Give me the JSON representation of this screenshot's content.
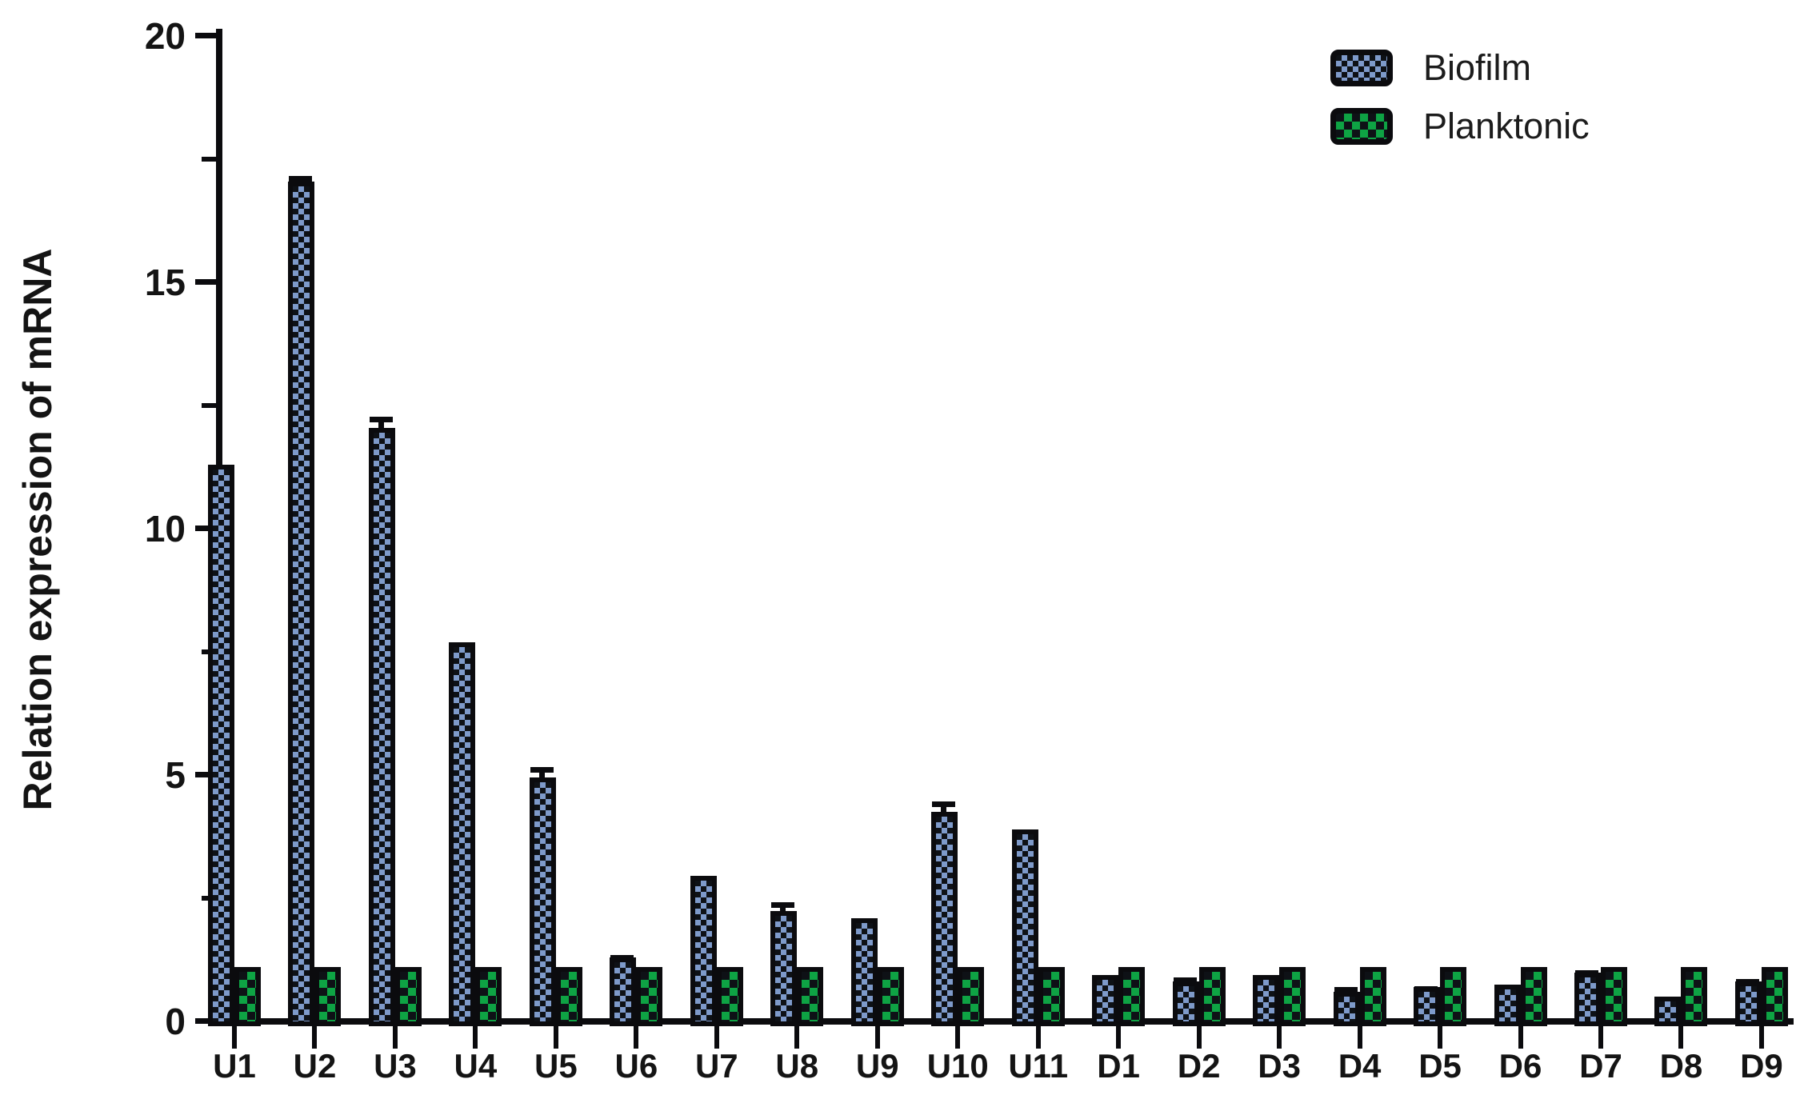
{
  "figure": {
    "background": "#ffffff",
    "axis_color": "#0b0b0e",
    "text_color": "#141414"
  },
  "chart_data": {
    "type": "bar",
    "title": "",
    "xlabel": "",
    "ylabel": "Relation expression of mRNA",
    "ylim": [
      0,
      20
    ],
    "y_ticks": {
      "values": [
        0,
        5,
        10,
        15,
        20
      ],
      "labels": [
        "0",
        "5",
        "10",
        "15",
        "20"
      ],
      "minor": [
        2.5,
        7.5,
        12.5,
        17.5
      ]
    },
    "grid": false,
    "legend_position": "top-right",
    "categories": [
      "U1",
      "U2",
      "U3",
      "U4",
      "U5",
      "U6",
      "U7",
      "U8",
      "U9",
      "U10",
      "U11",
      "D1",
      "D2",
      "D3",
      "D4",
      "D5",
      "D6",
      "D7",
      "D8",
      "D9"
    ],
    "series": [
      {
        "name": "Biofilm",
        "color": "#7e9aca",
        "pattern": "checkerboard-on-black",
        "values": [
          11.2,
          16.95,
          11.95,
          7.6,
          4.85,
          1.2,
          2.85,
          2.15,
          2.0,
          4.15,
          3.8,
          0.85,
          0.72,
          0.85,
          0.5,
          0.6,
          0.65,
          0.9,
          0.4,
          0.72
        ],
        "errors_upper": [
          0,
          0.15,
          0.25,
          0,
          0.25,
          0.08,
          0,
          0.2,
          0,
          0.25,
          0,
          0,
          0.1,
          0,
          0.13,
          0.05,
          0,
          0.08,
          0,
          0.08
        ]
      },
      {
        "name": "Planktonic",
        "color": "#0ea344",
        "pattern": "checkerboard-on-black",
        "values": [
          1.0,
          1.0,
          1.0,
          1.0,
          1.0,
          1.0,
          1.0,
          1.0,
          1.0,
          1.0,
          1.0,
          1.0,
          1.0,
          1.0,
          1.0,
          1.0,
          1.0,
          1.0,
          1.0,
          1.0
        ],
        "errors_upper": [
          0,
          0,
          0,
          0,
          0,
          0,
          0,
          0,
          0,
          0,
          0,
          0,
          0,
          0,
          0,
          0,
          0,
          0,
          0,
          0
        ]
      }
    ]
  }
}
